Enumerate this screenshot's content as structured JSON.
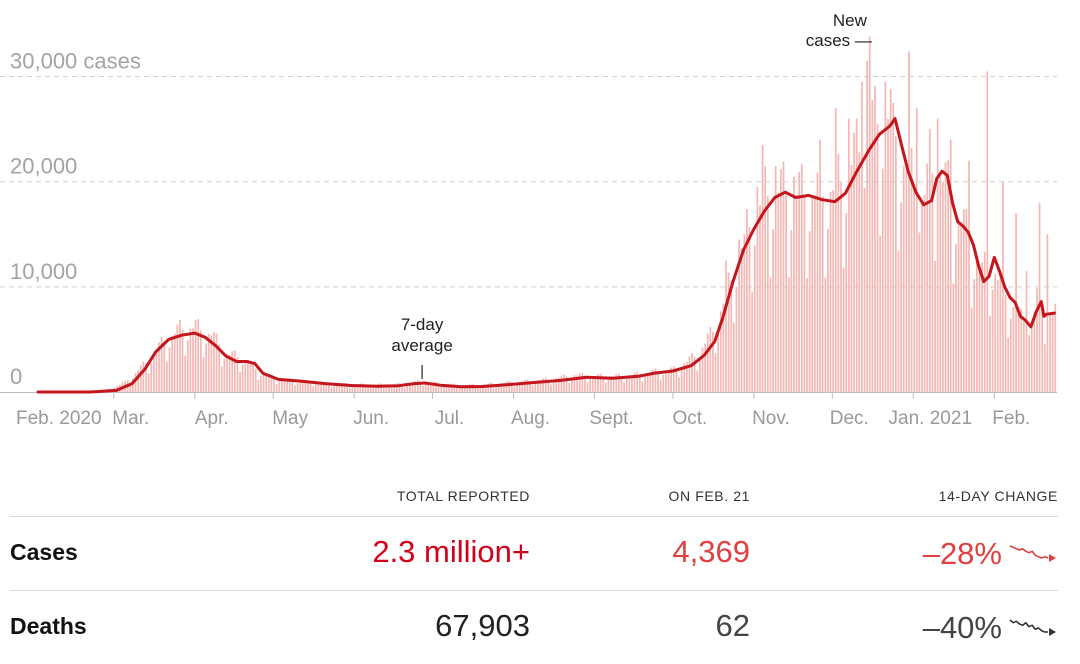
{
  "chart_data": {
    "type": "bar",
    "title": "",
    "xlabel": "",
    "ylabel": "",
    "ylim": [
      0,
      33000
    ],
    "y_ticks": [
      {
        "value": 0,
        "label": "0"
      },
      {
        "value": 10000,
        "label": "10,000"
      },
      {
        "value": 20000,
        "label": "20,000"
      },
      {
        "value": 30000,
        "label": "30,000 cases"
      }
    ],
    "x_range_days": [
      0,
      390
    ],
    "x_ticks": [
      {
        "day": 0,
        "label": "Feb. 2020"
      },
      {
        "day": 29,
        "label": "Mar."
      },
      {
        "day": 60,
        "label": "Apr."
      },
      {
        "day": 90,
        "label": "May"
      },
      {
        "day": 121,
        "label": "Jun."
      },
      {
        "day": 151,
        "label": "Jul."
      },
      {
        "day": 182,
        "label": "Aug."
      },
      {
        "day": 213,
        "label": "Sept."
      },
      {
        "day": 243,
        "label": "Oct."
      },
      {
        "day": 274,
        "label": "Nov."
      },
      {
        "day": 304,
        "label": "Dec."
      },
      {
        "day": 335,
        "label": "Jan. 2021"
      },
      {
        "day": 366,
        "label": "Feb."
      }
    ],
    "series": [
      {
        "name": "New cases",
        "kind": "daily-bars",
        "color": "#f4b7b3",
        "keypoints": [
          [
            0,
            0
          ],
          [
            25,
            120
          ],
          [
            33,
            900
          ],
          [
            40,
            2500
          ],
          [
            48,
            4800
          ],
          [
            54,
            5900
          ],
          [
            60,
            6100
          ],
          [
            66,
            5400
          ],
          [
            72,
            3600
          ],
          [
            78,
            3200
          ],
          [
            84,
            2000
          ],
          [
            90,
            1300
          ],
          [
            100,
            1000
          ],
          [
            110,
            800
          ],
          [
            120,
            700
          ],
          [
            130,
            700
          ],
          [
            140,
            750
          ],
          [
            146,
            1000
          ],
          [
            150,
            900
          ],
          [
            160,
            650
          ],
          [
            170,
            700
          ],
          [
            180,
            900
          ],
          [
            195,
            1200
          ],
          [
            205,
            1600
          ],
          [
            215,
            1500
          ],
          [
            225,
            1500
          ],
          [
            235,
            1900
          ],
          [
            243,
            2100
          ],
          [
            252,
            3500
          ],
          [
            258,
            5700
          ],
          [
            263,
            9000
          ],
          [
            268,
            13000
          ],
          [
            274,
            17000
          ],
          [
            278,
            18500
          ],
          [
            282,
            19000
          ],
          [
            290,
            18700
          ],
          [
            300,
            18600
          ],
          [
            306,
            19500
          ],
          [
            312,
            22000
          ],
          [
            318,
            24500
          ],
          [
            324,
            26200
          ],
          [
            327,
            25500
          ],
          [
            330,
            22000
          ],
          [
            334,
            20000
          ],
          [
            338,
            18000
          ],
          [
            343,
            21500
          ],
          [
            348,
            19000
          ],
          [
            352,
            16500
          ],
          [
            356,
            14500
          ],
          [
            361,
            11000
          ],
          [
            364,
            12500
          ],
          [
            368,
            10000
          ],
          [
            372,
            8500
          ],
          [
            376,
            6800
          ],
          [
            380,
            6500
          ],
          [
            382,
            8800
          ],
          [
            386,
            7500
          ],
          [
            389,
            7500
          ]
        ],
        "spikes": [
          [
            263,
            12500
          ],
          [
            268,
            14500
          ],
          [
            270,
            15000
          ],
          [
            275,
            19500
          ],
          [
            277,
            23500
          ],
          [
            282,
            21500
          ],
          [
            289,
            20500
          ],
          [
            299,
            24000
          ],
          [
            305,
            27000
          ],
          [
            310,
            26000
          ],
          [
            315,
            29500
          ],
          [
            317,
            31500
          ],
          [
            318,
            33800
          ],
          [
            321,
            25500
          ],
          [
            324,
            29500
          ],
          [
            327,
            27500
          ],
          [
            333,
            32400
          ],
          [
            336,
            27000
          ],
          [
            341,
            25000
          ],
          [
            344,
            26000
          ],
          [
            349,
            24000
          ],
          [
            356,
            22000
          ],
          [
            363,
            30500
          ],
          [
            369,
            20000
          ],
          [
            374,
            17000
          ],
          [
            378,
            11500
          ],
          [
            383,
            18000
          ],
          [
            386,
            15000
          ]
        ]
      },
      {
        "name": "7-day average",
        "kind": "line",
        "color": "#c4161c",
        "points": [
          [
            0,
            0
          ],
          [
            20,
            0
          ],
          [
            30,
            150
          ],
          [
            36,
            800
          ],
          [
            41,
            2200
          ],
          [
            45,
            3800
          ],
          [
            50,
            5000
          ],
          [
            55,
            5400
          ],
          [
            60,
            5600
          ],
          [
            64,
            5200
          ],
          [
            68,
            4400
          ],
          [
            72,
            3400
          ],
          [
            76,
            2900
          ],
          [
            80,
            2900
          ],
          [
            83,
            2700
          ],
          [
            86,
            1800
          ],
          [
            92,
            1200
          ],
          [
            100,
            1050
          ],
          [
            110,
            800
          ],
          [
            120,
            620
          ],
          [
            130,
            550
          ],
          [
            138,
            600
          ],
          [
            144,
            800
          ],
          [
            148,
            860
          ],
          [
            154,
            650
          ],
          [
            162,
            500
          ],
          [
            170,
            520
          ],
          [
            180,
            700
          ],
          [
            190,
            900
          ],
          [
            200,
            1100
          ],
          [
            210,
            1400
          ],
          [
            220,
            1300
          ],
          [
            230,
            1500
          ],
          [
            236,
            1800
          ],
          [
            243,
            2000
          ],
          [
            250,
            2500
          ],
          [
            255,
            3500
          ],
          [
            259,
            4800
          ],
          [
            262,
            7000
          ],
          [
            266,
            10500
          ],
          [
            270,
            13500
          ],
          [
            274,
            15500
          ],
          [
            278,
            17200
          ],
          [
            282,
            18500
          ],
          [
            286,
            19000
          ],
          [
            290,
            18500
          ],
          [
            295,
            18700
          ],
          [
            300,
            18300
          ],
          [
            305,
            18100
          ],
          [
            309,
            18900
          ],
          [
            313,
            20800
          ],
          [
            318,
            23000
          ],
          [
            322,
            24500
          ],
          [
            326,
            25300
          ],
          [
            328,
            26000
          ],
          [
            330,
            24000
          ],
          [
            333,
            21000
          ],
          [
            336,
            19000
          ],
          [
            339,
            17800
          ],
          [
            342,
            18200
          ],
          [
            344,
            20300
          ],
          [
            346,
            21000
          ],
          [
            348,
            20600
          ],
          [
            350,
            18000
          ],
          [
            352,
            16200
          ],
          [
            354,
            15800
          ],
          [
            356,
            15200
          ],
          [
            358,
            14000
          ],
          [
            360,
            12000
          ],
          [
            362,
            10500
          ],
          [
            364,
            11000
          ],
          [
            366,
            12800
          ],
          [
            368,
            11500
          ],
          [
            370,
            10000
          ],
          [
            372,
            9000
          ],
          [
            374,
            8500
          ],
          [
            376,
            7200
          ],
          [
            378,
            6800
          ],
          [
            380,
            6200
          ],
          [
            382,
            7600
          ],
          [
            384,
            8600
          ],
          [
            385,
            7200
          ],
          [
            386,
            7400
          ],
          [
            389,
            7500
          ]
        ]
      }
    ],
    "annotations": [
      {
        "lines": [
          "7-day",
          "average"
        ],
        "day": 147
      },
      {
        "lines": [
          "New",
          "cases —"
        ],
        "day": 318
      }
    ]
  },
  "table": {
    "headers": [
      "TOTAL REPORTED",
      "ON FEB. 21",
      "14-DAY CHANGE"
    ],
    "rows": [
      {
        "label": "Cases",
        "total": "2.3 million+",
        "on_date": "4,369",
        "change": "–28%",
        "trend": [
          20,
          19,
          18,
          17,
          18,
          16,
          15,
          16,
          13,
          12,
          11,
          12,
          11
        ]
      },
      {
        "label": "Deaths",
        "total": "67,903",
        "on_date": "62",
        "change": "–40%",
        "trend": [
          20,
          18,
          19,
          17,
          16,
          18,
          15,
          16,
          13,
          14,
          12,
          11,
          11
        ]
      }
    ]
  },
  "colors": {
    "bars": "#f4b7b3",
    "line": "#c4161c",
    "cases_total": "#d0021b",
    "cases_accent": "#e0403f",
    "deaths_sparkline": "#333333"
  }
}
